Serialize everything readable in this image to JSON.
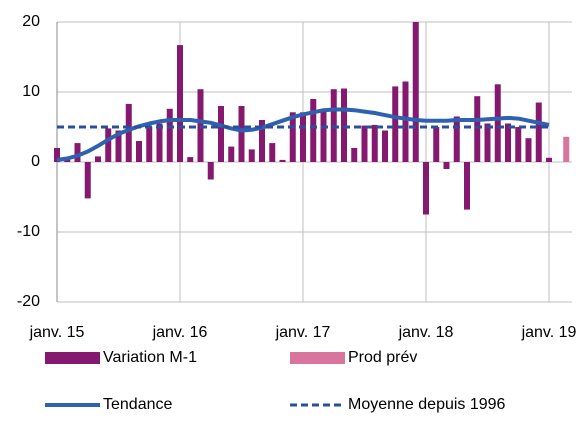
{
  "chart_data": {
    "type": "bar",
    "categories": [
      "janv. 15",
      null,
      null,
      null,
      null,
      null,
      null,
      null,
      null,
      null,
      null,
      null,
      "janv. 16",
      null,
      null,
      null,
      null,
      null,
      null,
      null,
      null,
      null,
      null,
      null,
      "janv. 17",
      null,
      null,
      null,
      null,
      null,
      null,
      null,
      null,
      null,
      null,
      null,
      "janv. 18",
      null,
      null,
      null,
      null,
      null,
      null,
      null,
      null,
      null,
      null,
      null,
      "janv. 19",
      null
    ],
    "series": [
      {
        "name": "Variation M-1",
        "type": "bar",
        "color": "#84196f",
        "values": [
          2,
          0.7,
          2.7,
          -5.2,
          0.8,
          4.8,
          4.5,
          8.3,
          3.0,
          5.0,
          5.5,
          7.6,
          16.7,
          0.7,
          10.4,
          -2.5,
          8.0,
          2.2,
          8.0,
          1.8,
          6.0,
          2.7,
          0.3,
          7.1,
          7.1,
          9.0,
          7.2,
          10.4,
          10.5,
          2.0,
          5.2,
          5.3,
          4.5,
          10.8,
          11.5,
          20,
          -7.5,
          5.0,
          -1.0,
          6.5,
          -6.8,
          9.4,
          5.5,
          11.1,
          5.5,
          5.0,
          3.4,
          8.5,
          0.6,
          null
        ]
      },
      {
        "name": "Prod prév",
        "type": "bar",
        "color": "#d9759c",
        "values": [
          null,
          null,
          null,
          null,
          null,
          null,
          null,
          null,
          null,
          null,
          null,
          null,
          null,
          null,
          null,
          null,
          null,
          null,
          null,
          null,
          null,
          null,
          null,
          null,
          null,
          null,
          null,
          null,
          null,
          null,
          null,
          null,
          null,
          null,
          null,
          null,
          null,
          null,
          null,
          null,
          null,
          null,
          null,
          null,
          null,
          null,
          null,
          null,
          null,
          3.6
        ]
      },
      {
        "name": "Tendance",
        "type": "line",
        "color": "#2e62b0",
        "values": [
          0.3,
          0.5,
          0.9,
          1.5,
          2.3,
          3.2,
          4.0,
          4.6,
          5.1,
          5.5,
          5.8,
          6.0,
          6.0,
          6.0,
          5.8,
          5.6,
          5.2,
          4.8,
          4.5,
          4.6,
          4.9,
          5.4,
          5.9,
          6.4,
          6.8,
          7.1,
          7.4,
          7.5,
          7.5,
          7.4,
          7.2,
          7.0,
          6.7,
          6.4,
          6.2,
          6.0,
          5.9,
          5.9,
          5.9,
          6.0,
          6.0,
          6.0,
          6.1,
          6.2,
          6.3,
          6.2,
          5.9,
          5.6,
          5.3,
          null
        ]
      },
      {
        "name": "Moyenne depuis 1996",
        "type": "dashed-line",
        "color": "#2a4f9c",
        "values": [
          5,
          5,
          5,
          5,
          5,
          5,
          5,
          5,
          5,
          5,
          5,
          5,
          5,
          5,
          5,
          5,
          5,
          5,
          5,
          5,
          5,
          5,
          5,
          5,
          5,
          5,
          5,
          5,
          5,
          5,
          5,
          5,
          5,
          5,
          5,
          5,
          5,
          5,
          5,
          5,
          5,
          5,
          5,
          5,
          5,
          5,
          5,
          5,
          5,
          null
        ]
      }
    ],
    "ylim": [
      -20,
      20
    ],
    "yticks": [
      -20,
      -10,
      0,
      10,
      20
    ],
    "grid": true,
    "legend": "bottom"
  }
}
